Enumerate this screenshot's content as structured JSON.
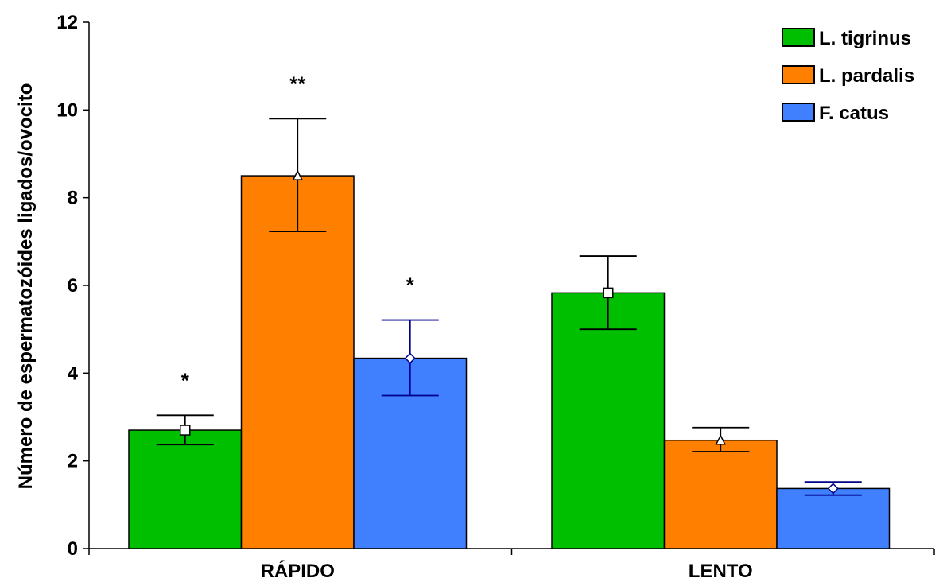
{
  "chart_data": {
    "type": "bar",
    "title": "",
    "xlabel": "",
    "ylabel": "Número de espermatozóides ligados/ovocito",
    "ylim": [
      0,
      12
    ],
    "yticks": [
      0,
      2,
      4,
      6,
      8,
      10,
      12
    ],
    "categories": [
      "RÁPIDO",
      "LENTO"
    ],
    "series": [
      {
        "name": "L. tigrinus",
        "color": "#00BE00",
        "marker": "square",
        "error_color": "#000000",
        "values": [
          2.7,
          5.83
        ],
        "error_low": [
          2.37,
          5.0
        ],
        "error_high": [
          3.04,
          6.67
        ],
        "annotations": [
          "*",
          ""
        ]
      },
      {
        "name": "L. pardalis",
        "color": "#FF8000",
        "marker": "triangle",
        "error_color": "#000000",
        "values": [
          8.5,
          2.47
        ],
        "error_low": [
          7.23,
          2.21
        ],
        "error_high": [
          9.8,
          2.76
        ],
        "annotations": [
          "**",
          ""
        ]
      },
      {
        "name": "F. catus",
        "color": "#4080FF",
        "marker": "diamond",
        "error_color": "#00008C",
        "values": [
          4.34,
          1.37
        ],
        "error_low": [
          3.49,
          1.22
        ],
        "error_high": [
          5.21,
          1.52
        ],
        "annotations": [
          "*",
          ""
        ]
      }
    ],
    "grid": false,
    "legend_position": "top-right"
  }
}
